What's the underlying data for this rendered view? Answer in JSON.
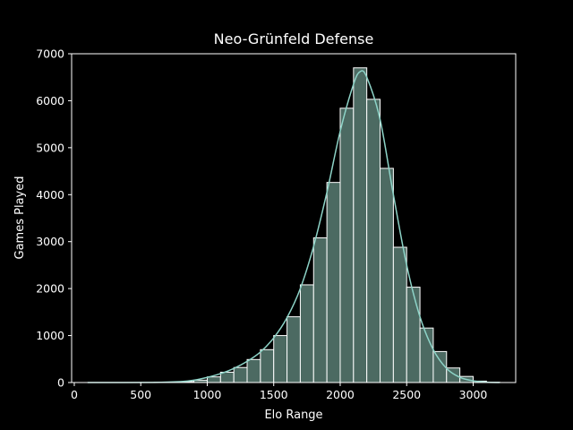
{
  "chart_data": {
    "type": "bar",
    "title": "Neo-Grünfeld Defense",
    "xlabel": "Elo Range",
    "ylabel": "Games Played",
    "xlim": [
      -20,
      3320
    ],
    "ylim": [
      0,
      7000
    ],
    "xticks": [
      0,
      500,
      1000,
      1500,
      2000,
      2500,
      3000
    ],
    "yticks": [
      0,
      1000,
      2000,
      3000,
      4000,
      5000,
      6000,
      7000
    ],
    "bin_width": 100,
    "bins": [
      {
        "start": 100,
        "value": 0
      },
      {
        "start": 200,
        "value": 0
      },
      {
        "start": 300,
        "value": 0
      },
      {
        "start": 400,
        "value": 0
      },
      {
        "start": 500,
        "value": 0
      },
      {
        "start": 600,
        "value": 3
      },
      {
        "start": 700,
        "value": 8
      },
      {
        "start": 800,
        "value": 20
      },
      {
        "start": 900,
        "value": 50
      },
      {
        "start": 1000,
        "value": 120
      },
      {
        "start": 1100,
        "value": 220
      },
      {
        "start": 1200,
        "value": 320
      },
      {
        "start": 1300,
        "value": 490
      },
      {
        "start": 1400,
        "value": 700
      },
      {
        "start": 1500,
        "value": 1000
      },
      {
        "start": 1600,
        "value": 1400
      },
      {
        "start": 1700,
        "value": 2080
      },
      {
        "start": 1800,
        "value": 3080
      },
      {
        "start": 1900,
        "value": 4260
      },
      {
        "start": 2000,
        "value": 5840
      },
      {
        "start": 2100,
        "value": 6700
      },
      {
        "start": 2200,
        "value": 6030
      },
      {
        "start": 2300,
        "value": 4560
      },
      {
        "start": 2400,
        "value": 2880
      },
      {
        "start": 2500,
        "value": 2030
      },
      {
        "start": 2600,
        "value": 1160
      },
      {
        "start": 2700,
        "value": 660
      },
      {
        "start": 2800,
        "value": 310
      },
      {
        "start": 2900,
        "value": 130
      },
      {
        "start": 3000,
        "value": 30
      },
      {
        "start": 3100,
        "value": 5
      }
    ],
    "kde": [
      [
        100,
        0
      ],
      [
        600,
        3
      ],
      [
        800,
        20
      ],
      [
        900,
        50
      ],
      [
        1000,
        110
      ],
      [
        1100,
        190
      ],
      [
        1200,
        300
      ],
      [
        1300,
        450
      ],
      [
        1400,
        650
      ],
      [
        1500,
        950
      ],
      [
        1600,
        1380
      ],
      [
        1700,
        2000
      ],
      [
        1800,
        2900
      ],
      [
        1900,
        4050
      ],
      [
        2000,
        5350
      ],
      [
        2100,
        6350
      ],
      [
        2150,
        6620
      ],
      [
        2200,
        6500
      ],
      [
        2300,
        5600
      ],
      [
        2400,
        4000
      ],
      [
        2500,
        2500
      ],
      [
        2600,
        1400
      ],
      [
        2700,
        700
      ],
      [
        2800,
        300
      ],
      [
        2900,
        110
      ],
      [
        3000,
        35
      ],
      [
        3100,
        8
      ],
      [
        3200,
        0
      ]
    ],
    "grid": false,
    "colors": {
      "bar_fill": "#4c6a62",
      "bar_edge": "#ffffff",
      "kde_line": "#8dd3c7",
      "axes": "#ffffff",
      "background": "#000000"
    }
  }
}
